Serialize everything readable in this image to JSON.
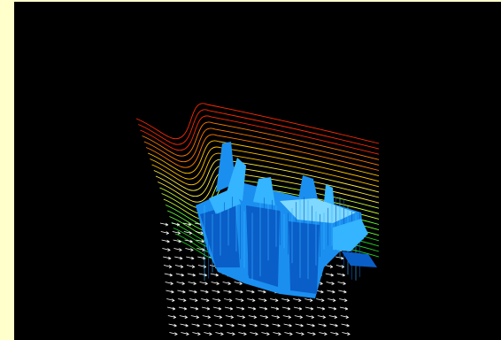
{
  "window": {
    "frame_color": "#ffffcc",
    "viewport_color": "#000000"
  },
  "scene": {
    "description_visible_text": "",
    "elements": [
      {
        "name": "streamline-contours",
        "kind": "line-set",
        "colors": [
          "#ff2a00",
          "#ff7a00",
          "#ffc000",
          "#ffee44",
          "#ccff33",
          "#66ff33",
          "#22cc22"
        ]
      },
      {
        "name": "vector-field-glyphs",
        "kind": "arrow-grid",
        "color": "#ffffff"
      },
      {
        "name": "isosurface-volume",
        "kind": "blue-surface",
        "colors": [
          "#0a5ec8",
          "#1a8ff0",
          "#35b4ff",
          "#7fd8ff"
        ]
      }
    ]
  }
}
